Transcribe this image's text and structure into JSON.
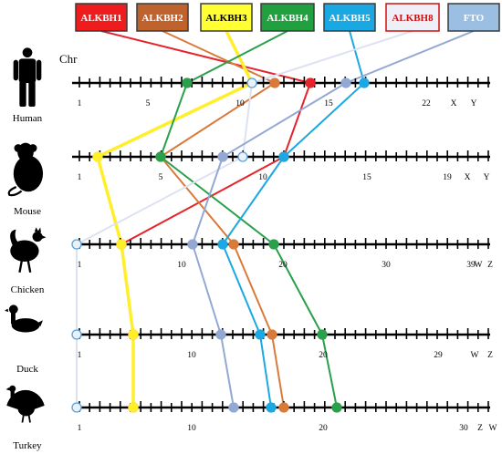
{
  "chr_label": "Chr",
  "genes": [
    {
      "id": "ALKBH1",
      "label": "ALKBH1",
      "fill": "#ee1c1c",
      "text": "#ffffff",
      "border": "#3a3a3a",
      "line": "#e5232b"
    },
    {
      "id": "ALKBH2",
      "label": "ALKBH2",
      "fill": "#c0622c",
      "text": "#ffffff",
      "border": "#3a3a3a",
      "line": "#d87a3a"
    },
    {
      "id": "ALKBH3",
      "label": "ALKBH3",
      "fill": "#ffff33",
      "text": "#000000",
      "border": "#3a3a3a",
      "line": "#ffef2a"
    },
    {
      "id": "ALKBH4",
      "label": "ALKBH4",
      "fill": "#21a040",
      "text": "#ffffff",
      "border": "#3a3a3a",
      "line": "#2aa04a"
    },
    {
      "id": "ALKBH5",
      "label": "ALKBH5",
      "fill": "#1aa8e3",
      "text": "#ffffff",
      "border": "#3a3a3a",
      "line": "#1ba8e3"
    },
    {
      "id": "ALKBH8",
      "label": "ALKBH8",
      "fill": "#efeff8",
      "text": "#cc1111",
      "border": "#cc1111",
      "line": "#dde2f2"
    },
    {
      "id": "FTO",
      "label": "FTO",
      "fill": "#9bbfe2",
      "text": "#ffffff",
      "border": "#3a3a3a",
      "line": "#93a8d2"
    }
  ],
  "species": [
    {
      "id": "human",
      "name": "Human",
      "labels": [
        "1",
        "5",
        "10",
        "15",
        "22",
        "X",
        "Y"
      ]
    },
    {
      "id": "mouse",
      "name": "Mouse",
      "labels": [
        "1",
        "5",
        "10",
        "15",
        "19",
        "X",
        "Y"
      ]
    },
    {
      "id": "chicken",
      "name": "Chicken",
      "labels": [
        "1",
        "10",
        "20",
        "30",
        "39",
        "W",
        "Z"
      ]
    },
    {
      "id": "duck",
      "name": "Duck",
      "labels": [
        "1",
        "10",
        "20",
        "29",
        "W",
        "Z"
      ]
    },
    {
      "id": "turkey",
      "name": "Turkey",
      "labels": [
        "1",
        "10",
        "20",
        "30",
        "Z",
        "W"
      ]
    }
  ],
  "mappings": {
    "human": {
      "ALKBH1": "14",
      "ALKBH2": "12",
      "ALKBH3": "11",
      "ALKBH4": "7",
      "ALKBH5": "17",
      "ALKBH8": "11",
      "FTO": "16"
    },
    "mouse": {
      "ALKBH1": "11",
      "ALKBH2": "5",
      "ALKBH3": "2",
      "ALKBH4": "5",
      "ALKBH5": "11",
      "ALKBH8": "9",
      "FTO": "8"
    },
    "chicken": {
      "ALKBH1": "5",
      "ALKBH2": "15",
      "ALKBH3": "5",
      "ALKBH4": "19",
      "ALKBH5": "14",
      "ALKBH8": "1",
      "FTO": "11"
    },
    "duck": {
      "ALKBH1": "5",
      "ALKBH2": "17",
      "ALKBH3": "5",
      "ALKBH4": "21",
      "ALKBH5": "16",
      "ALKBH8": "1",
      "FTO": "13"
    },
    "turkey": {
      "ALKBH1": "5",
      "ALKBH2": "18",
      "ALKBH3": "5",
      "ALKBH4": "22",
      "ALKBH5": "17",
      "ALKBH8": "1",
      "FTO": "14"
    }
  }
}
